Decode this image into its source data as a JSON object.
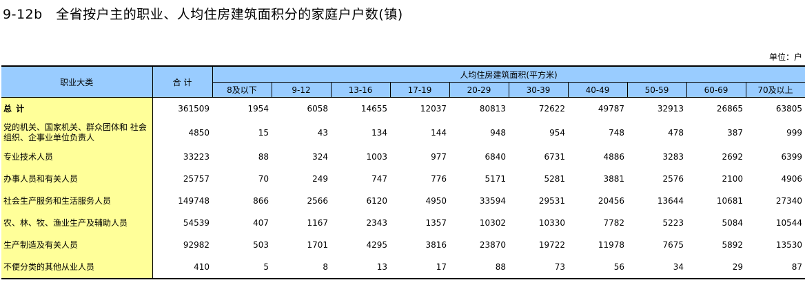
{
  "title": "9-12b   全省按户主的职业、人均住房建筑面积分的家庭户户数(镇)",
  "unit_label": "单位：户",
  "headers": {
    "category": "职业大类",
    "total": "合  计",
    "group": "人均住房建筑面积(平方米)",
    "bins": [
      "8及以下",
      "9-12",
      "13-16",
      "17-19",
      "20-29",
      "30-39",
      "40-49",
      "50-59",
      "60-69",
      "70及以上"
    ]
  },
  "rows": [
    {
      "label": "总  计",
      "total": "361509",
      "values": [
        "1954",
        "6058",
        "14655",
        "12037",
        "80813",
        "72622",
        "49787",
        "32913",
        "26865",
        "63805"
      ]
    },
    {
      "label": "党的机关、国家机关、群众团体和 社会组织、企事业单位负责人",
      "total": "4850",
      "values": [
        "15",
        "43",
        "134",
        "144",
        "948",
        "954",
        "748",
        "478",
        "387",
        "999"
      ]
    },
    {
      "label": "专业技术人员",
      "total": "33223",
      "values": [
        "88",
        "324",
        "1003",
        "977",
        "6840",
        "6731",
        "4886",
        "3283",
        "2692",
        "6399"
      ]
    },
    {
      "label": "办事人员和有关人员",
      "total": "25757",
      "values": [
        "70",
        "249",
        "747",
        "776",
        "5171",
        "5281",
        "3881",
        "2576",
        "2100",
        "4906"
      ]
    },
    {
      "label": "社会生产服务和生活服务人员",
      "total": "149748",
      "values": [
        "866",
        "2566",
        "6120",
        "4950",
        "33594",
        "29531",
        "20456",
        "13644",
        "10681",
        "27340"
      ]
    },
    {
      "label": "农、林、牧、渔业生产及辅助人员",
      "total": "54539",
      "values": [
        "407",
        "1167",
        "2343",
        "1357",
        "10302",
        "10330",
        "7782",
        "5223",
        "5084",
        "10544"
      ]
    },
    {
      "label": "生产制造及有关人员",
      "total": "92982",
      "values": [
        "503",
        "1701",
        "4295",
        "3816",
        "23870",
        "19722",
        "11978",
        "7675",
        "5892",
        "13530"
      ]
    },
    {
      "label": "不便分类的其他从业人员",
      "total": "410",
      "values": [
        "5",
        "8",
        "13",
        "17",
        "88",
        "73",
        "56",
        "34",
        "29",
        "87"
      ]
    }
  ]
}
